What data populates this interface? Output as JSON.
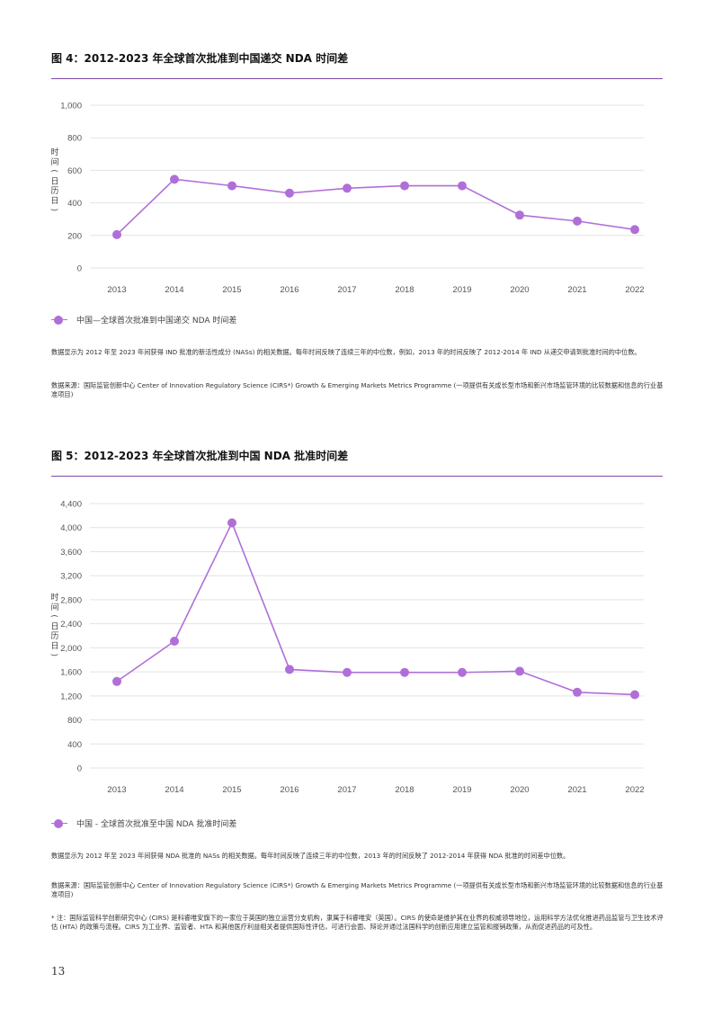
{
  "figures": [
    {
      "title": "图 4：2012-2023 年全球首次批准到中国递交 NDA 时间差",
      "legend": "中国—全球首次批准到中国递交 NDA 时间差",
      "note": "数据显示为 2012 年至 2023 年间获得 IND 批准的新活性成分 (NASs) 的相关数据。每年时间反映了连续三年的中位数，例如，2013 年的时间反映了 2012-2014 年 IND 从递交申请到批准时间的中位数。",
      "source": "数据来源：国际监管创新中心 Center of Innovation Regulatory Science (CIRS*) Growth & Emerging Markets Metrics Programme (一项提供有关成长型市场和新兴市场监管环境的比较数据和信息的行业基准项目)"
    },
    {
      "title": "图 5：2012-2023 年全球首次批准到中国 NDA 批准时间差",
      "legend": "中国 - 全球首次批准至中国 NDA 批准时间差",
      "note": "数据显示为 2012 年至 2023 年间获得 NDA 批准的 NASs 的相关数据。每年时间反映了连续三年的中位数，2013 年的时间反映了 2012-2014 年获得 NDA 批准的时间差中位数。",
      "source": "数据来源：国际监管创新中心 Center of Innovation Regulatory Science (CIRS*) Growth & Emerging Markets Metrics Programme (一项提供有关成长型市场和新兴市场监管环境的比较数据和信息的行业基准项目)",
      "footnote": "* 注：国际监管科学创新研究中心 (CIRS) 是科睿唯安旗下的一家位于英国的独立运营分支机构，隶属于科睿唯安（英国）。CIRS 的使命是维护其在业界的权威领导地位，运用科学方法优化推进药品监管与卫生技术评估 (HTA) 的政策与流程。CIRS 为工业界、监管者、HTA 和其他医疗利益相关者提供国际性评估，可进行会面、辩论并通过法国科学的创新应用建立监管和报销政策，从而促进药品的可及性。"
    }
  ],
  "page_number": "13",
  "colors": {
    "series": "#b06fd8",
    "rule": "#7b4aa8",
    "grid": "#e3e3e3"
  },
  "chart_data": [
    {
      "type": "line",
      "x": [
        "2013",
        "2014",
        "2015",
        "2016",
        "2017",
        "2018",
        "2019",
        "2020",
        "2021",
        "2022"
      ],
      "series": [
        {
          "name": "中国—全球首次批准到中国递交 NDA 时间差",
          "values": [
            205,
            545,
            505,
            460,
            490,
            505,
            505,
            325,
            288,
            236
          ]
        }
      ],
      "ylabel": "时间（日历日）",
      "ylim": [
        0,
        1000
      ],
      "yticks": [
        0,
        200,
        400,
        600,
        800,
        1000
      ],
      "ytick_labels": [
        "0",
        "200",
        "400",
        "600",
        "800",
        "1,000"
      ],
      "grid": true,
      "legend": "bottom-left"
    },
    {
      "type": "line",
      "x": [
        "2013",
        "2014",
        "2015",
        "2016",
        "2017",
        "2018",
        "2019",
        "2020",
        "2021",
        "2022"
      ],
      "series": [
        {
          "name": "中国 - 全球首次批准至中国 NDA 批准时间差",
          "values": [
            1440,
            2110,
            4080,
            1640,
            1590,
            1590,
            1590,
            1610,
            1260,
            1220
          ]
        }
      ],
      "ylabel": "时间（日历日）",
      "ylim": [
        0,
        4400
      ],
      "yticks": [
        0,
        400,
        800,
        1200,
        1600,
        2000,
        2400,
        2800,
        3200,
        3600,
        4000,
        4400
      ],
      "ytick_labels": [
        "0",
        "400",
        "800",
        "1,200",
        "1,600",
        "2,000",
        "2,400",
        "2,800",
        "3,200",
        "3,600",
        "4,000",
        "4,400"
      ],
      "grid": true,
      "legend": "bottom-left"
    }
  ]
}
